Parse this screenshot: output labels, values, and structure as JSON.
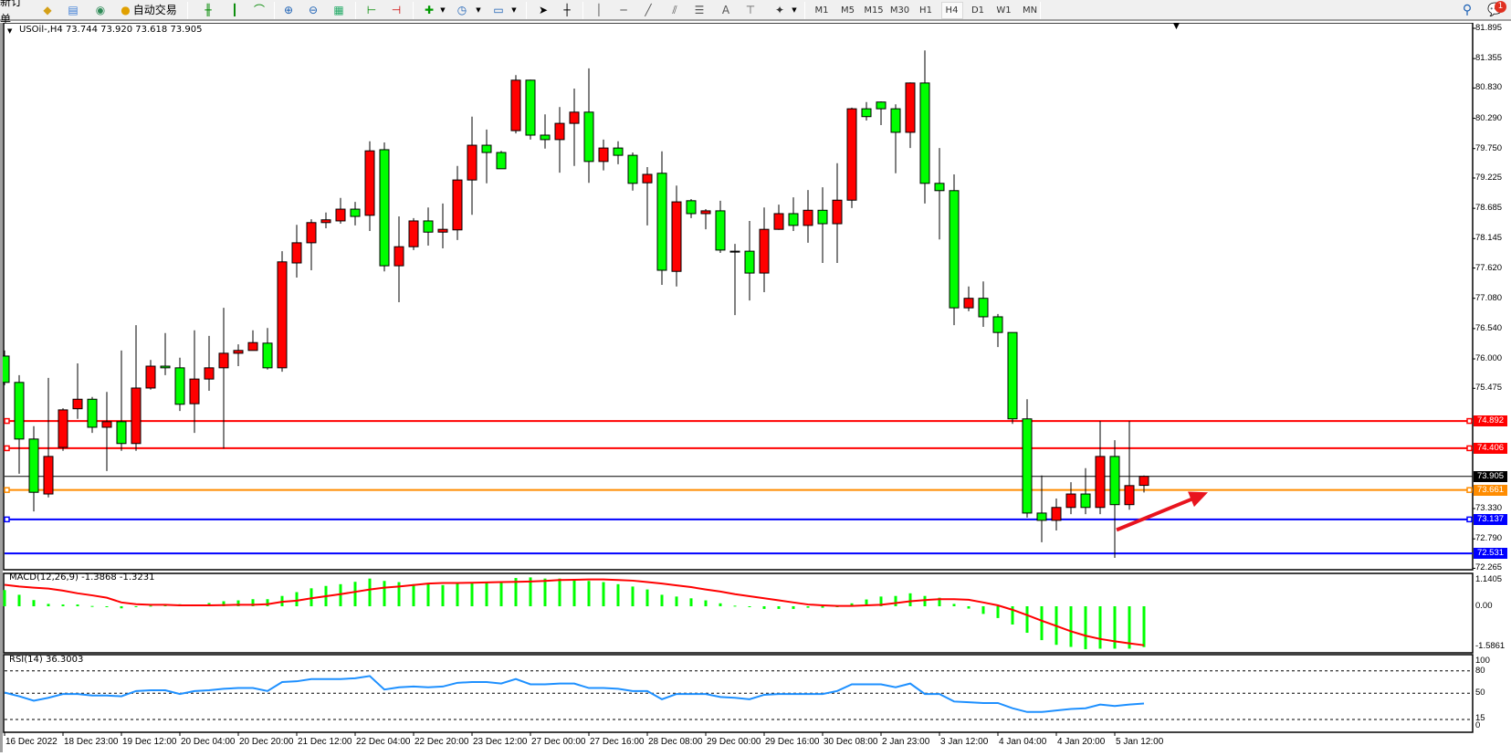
{
  "toolbar": {
    "new_order": "新订单",
    "auto_trading": "自动交易",
    "timeframes": [
      "M1",
      "M5",
      "M15",
      "M30",
      "H1",
      "H4",
      "D1",
      "W1",
      "MN"
    ],
    "active_timeframe": "H4",
    "text_tool": "A",
    "notification_count": "1",
    "icons": [
      "new-order-icon",
      "book-icon",
      "server-icon",
      "signal-icon",
      "autotrade-icon",
      "bar-chart-icon",
      "candlestick-icon",
      "line-chart-icon",
      "zoom-in-icon",
      "zoom-out-icon",
      "tile-windows-icon",
      "chart-shift-icon",
      "autoscroll-icon",
      "add-indicator-icon",
      "periods-icon",
      "template-icon",
      "cursor-icon",
      "crosshair-icon",
      "vertical-line-icon",
      "horizontal-line-icon",
      "trendline-icon",
      "channel-icon",
      "fibonacci-icon",
      "text-icon",
      "text-label-icon",
      "arrows-icon",
      "search-icon",
      "notification-icon"
    ]
  },
  "chart": {
    "title": "USOil-,H4  73.744 73.920 73.618 73.905",
    "colors": {
      "bull": "#ff0000",
      "bear": "#00ff00",
      "outline": "#000000",
      "macd_hist": "#00ff00",
      "signal": "#ff0000",
      "rsi": "#1e90ff"
    },
    "price_ticks": [
      "81.895",
      "81.355",
      "80.830",
      "80.290",
      "79.750",
      "79.225",
      "78.685",
      "78.145",
      "77.620",
      "77.080",
      "76.540",
      "76.000",
      "75.475",
      "73.330",
      "72.790",
      "72.265"
    ],
    "levels": [
      {
        "price": "74.892",
        "color": "#ff0000",
        "marker": true
      },
      {
        "price": "74.406",
        "color": "#ff0000",
        "marker": true
      },
      {
        "price": "73.905",
        "color": "#000000",
        "marker": false
      },
      {
        "price": "73.661",
        "color": "#ff8c00",
        "marker": true
      },
      {
        "price": "73.137",
        "color": "#0000ff",
        "marker": true
      },
      {
        "price": "72.531",
        "color": "#0000ff",
        "marker": false
      }
    ],
    "arrow": {
      "color": "#e8141e",
      "from_price": 72.95,
      "to_price": 73.62
    },
    "candles": [
      [
        76.05,
        76.15,
        75.53,
        75.58
      ],
      [
        75.58,
        75.71,
        73.95,
        74.57
      ],
      [
        74.57,
        74.8,
        73.28,
        73.62
      ],
      [
        73.59,
        75.66,
        73.53,
        74.26
      ],
      [
        74.42,
        75.12,
        74.36,
        75.09
      ],
      [
        75.11,
        75.92,
        74.93,
        75.28
      ],
      [
        75.28,
        75.32,
        74.68,
        74.78
      ],
      [
        74.78,
        75.41,
        74.0,
        74.88
      ],
      [
        74.88,
        76.15,
        74.36,
        74.49
      ],
      [
        74.49,
        76.6,
        74.36,
        75.48
      ],
      [
        75.48,
        75.98,
        75.45,
        75.87
      ],
      [
        75.87,
        76.46,
        75.71,
        75.84
      ],
      [
        75.84,
        76.02,
        75.07,
        75.19
      ],
      [
        75.2,
        76.51,
        74.68,
        75.64
      ],
      [
        75.64,
        76.41,
        75.43,
        75.84
      ],
      [
        75.84,
        76.91,
        74.4,
        76.1
      ],
      [
        76.1,
        76.26,
        75.87,
        76.15
      ],
      [
        76.15,
        76.51,
        76.15,
        76.29
      ],
      [
        76.28,
        76.55,
        75.81,
        75.84
      ],
      [
        75.84,
        77.92,
        75.77,
        77.73
      ],
      [
        77.71,
        78.39,
        77.45,
        78.07
      ],
      [
        78.07,
        78.49,
        77.58,
        78.43
      ],
      [
        78.43,
        78.61,
        78.33,
        78.48
      ],
      [
        78.46,
        78.87,
        78.41,
        78.67
      ],
      [
        78.67,
        78.8,
        78.38,
        78.54
      ],
      [
        78.56,
        79.88,
        78.28,
        79.71
      ],
      [
        79.73,
        79.86,
        77.56,
        77.66
      ],
      [
        77.66,
        78.54,
        77.01,
        78.0
      ],
      [
        78.0,
        78.51,
        77.94,
        78.46
      ],
      [
        78.46,
        78.7,
        78.02,
        78.26
      ],
      [
        78.26,
        78.77,
        77.97,
        78.31
      ],
      [
        78.3,
        79.44,
        78.12,
        79.19
      ],
      [
        79.19,
        80.32,
        78.57,
        79.81
      ],
      [
        79.81,
        80.09,
        79.13,
        79.68
      ],
      [
        79.68,
        79.71,
        79.39,
        79.39
      ],
      [
        80.07,
        81.06,
        80.02,
        80.97
      ],
      [
        80.97,
        80.98,
        79.91,
        79.99
      ],
      [
        79.99,
        80.36,
        79.75,
        79.91
      ],
      [
        79.91,
        80.49,
        79.32,
        80.2
      ],
      [
        80.2,
        80.82,
        79.44,
        80.4
      ],
      [
        80.4,
        81.18,
        79.14,
        79.52
      ],
      [
        79.52,
        79.91,
        79.36,
        79.76
      ],
      [
        79.76,
        79.88,
        79.47,
        79.63
      ],
      [
        79.63,
        79.68,
        79.0,
        79.13
      ],
      [
        79.14,
        79.42,
        78.38,
        79.29
      ],
      [
        79.31,
        79.7,
        77.32,
        77.58
      ],
      [
        77.56,
        79.09,
        77.29,
        78.8
      ],
      [
        78.82,
        78.85,
        78.51,
        78.59
      ],
      [
        78.59,
        78.67,
        78.31,
        78.64
      ],
      [
        78.64,
        78.82,
        77.89,
        77.94
      ],
      [
        77.92,
        78.05,
        76.78,
        77.92
      ],
      [
        77.92,
        78.46,
        77.04,
        77.53
      ],
      [
        77.53,
        78.7,
        77.19,
        78.31
      ],
      [
        78.31,
        78.75,
        78.3,
        78.59
      ],
      [
        78.59,
        78.88,
        78.28,
        78.38
      ],
      [
        78.38,
        79.01,
        78.07,
        78.65
      ],
      [
        78.65,
        79.06,
        77.71,
        78.41
      ],
      [
        78.41,
        79.49,
        77.71,
        78.83
      ],
      [
        78.83,
        80.48,
        78.69,
        80.46
      ],
      [
        80.46,
        80.58,
        80.25,
        80.32
      ],
      [
        80.58,
        80.59,
        80.17,
        80.46
      ],
      [
        80.46,
        80.54,
        79.31,
        80.04
      ],
      [
        80.04,
        80.93,
        79.76,
        80.92
      ],
      [
        80.92,
        81.5,
        78.77,
        79.13
      ],
      [
        79.13,
        79.76,
        78.13,
        79.0
      ],
      [
        79.0,
        79.29,
        76.6,
        76.91
      ],
      [
        76.91,
        77.29,
        76.85,
        77.08
      ],
      [
        77.08,
        77.38,
        76.57,
        76.75
      ],
      [
        76.75,
        76.8,
        76.21,
        76.47
      ],
      [
        76.47,
        76.47,
        74.84,
        74.93
      ],
      [
        74.93,
        75.28,
        73.17,
        73.25
      ],
      [
        73.25,
        73.92,
        72.73,
        73.12
      ],
      [
        73.12,
        73.51,
        72.94,
        73.35
      ],
      [
        73.35,
        73.8,
        73.23,
        73.59
      ],
      [
        73.59,
        74.05,
        73.23,
        73.35
      ],
      [
        73.35,
        74.89,
        73.23,
        74.26
      ],
      [
        74.26,
        74.55,
        72.45,
        73.4
      ],
      [
        73.4,
        74.89,
        73.31,
        73.74
      ],
      [
        73.744,
        73.92,
        73.618,
        73.905
      ]
    ]
  },
  "macd": {
    "label": "MACD(12,26,9) -1.3868 -1.3231",
    "ticks": [
      "1.1405",
      "0.00",
      "-1.5861"
    ],
    "hist": [
      0.55,
      0.39,
      0.21,
      0.08,
      0.06,
      0.06,
      0.01,
      -0.01,
      -0.07,
      -0.01,
      0.02,
      0.04,
      0.07,
      0.06,
      0.11,
      0.17,
      0.2,
      0.24,
      0.24,
      0.35,
      0.48,
      0.61,
      0.69,
      0.75,
      0.83,
      0.94,
      0.86,
      0.82,
      0.75,
      0.79,
      0.72,
      0.8,
      0.79,
      0.8,
      0.8,
      0.96,
      0.98,
      0.94,
      0.94,
      0.92,
      0.86,
      0.82,
      0.75,
      0.67,
      0.57,
      0.39,
      0.33,
      0.27,
      0.2,
      0.1,
      0.02,
      -0.02,
      -0.09,
      -0.09,
      -0.09,
      -0.05,
      -0.05,
      0.0,
      0.1,
      0.23,
      0.33,
      0.35,
      0.44,
      0.35,
      0.29,
      0.08,
      -0.08,
      -0.26,
      -0.4,
      -0.62,
      -0.9,
      -1.15,
      -1.31,
      -1.38,
      -1.46,
      -1.44,
      -1.44,
      -1.44,
      -1.3868
    ],
    "signal": [
      0.73,
      0.67,
      0.63,
      0.6,
      0.53,
      0.44,
      0.37,
      0.29,
      0.13,
      0.07,
      0.05,
      0.05,
      0.03,
      0.03,
      0.03,
      0.04,
      0.05,
      0.05,
      0.07,
      0.15,
      0.19,
      0.27,
      0.34,
      0.41,
      0.49,
      0.57,
      0.63,
      0.67,
      0.72,
      0.77,
      0.79,
      0.79,
      0.8,
      0.81,
      0.82,
      0.83,
      0.84,
      0.86,
      0.89,
      0.9,
      0.91,
      0.91,
      0.89,
      0.87,
      0.82,
      0.77,
      0.71,
      0.65,
      0.57,
      0.5,
      0.41,
      0.34,
      0.27,
      0.2,
      0.13,
      0.06,
      0.03,
      0.01,
      0.01,
      0.03,
      0.05,
      0.11,
      0.17,
      0.21,
      0.24,
      0.24,
      0.22,
      0.13,
      0.03,
      -0.12,
      -0.3,
      -0.49,
      -0.67,
      -0.85,
      -1.0,
      -1.11,
      -1.19,
      -1.26,
      -1.3231
    ]
  },
  "rsi": {
    "label": "RSI(14) 36.3003",
    "ticks": [
      "100",
      "80",
      "50",
      "15",
      "0"
    ],
    "levels": [
      80,
      50,
      15
    ],
    "values": [
      51,
      46,
      40,
      44,
      49,
      49,
      47,
      47,
      46,
      53,
      54,
      54,
      49,
      53,
      54,
      56,
      57,
      57,
      53,
      65,
      66,
      69,
      69,
      69,
      70,
      73,
      55,
      58,
      59,
      58,
      59,
      64,
      65,
      65,
      63,
      69,
      62,
      62,
      63,
      63,
      57,
      57,
      56,
      53,
      53,
      42,
      49,
      49,
      49,
      45,
      44,
      42,
      48,
      49,
      49,
      49,
      49,
      53,
      62,
      62,
      62,
      58,
      63,
      49,
      49,
      39,
      38,
      37,
      37,
      30,
      25,
      25,
      27,
      29,
      30,
      35,
      33,
      35,
      36.3003
    ]
  },
  "time_axis": [
    "16 Dec 2022",
    "18 Dec 23:00",
    "19 Dec 12:00",
    "20 Dec 04:00",
    "20 Dec 20:00",
    "21 Dec 12:00",
    "22 Dec 04:00",
    "22 Dec 20:00",
    "23 Dec 12:00",
    "27 Dec 00:00",
    "27 Dec 16:00",
    "28 Dec 08:00",
    "29 Dec 00:00",
    "29 Dec 16:00",
    "30 Dec 08:00",
    "2 Jan 23:00",
    "3 Jan 12:00",
    "4 Jan 04:00",
    "4 Jan 20:00",
    "5 Jan 12:00"
  ]
}
